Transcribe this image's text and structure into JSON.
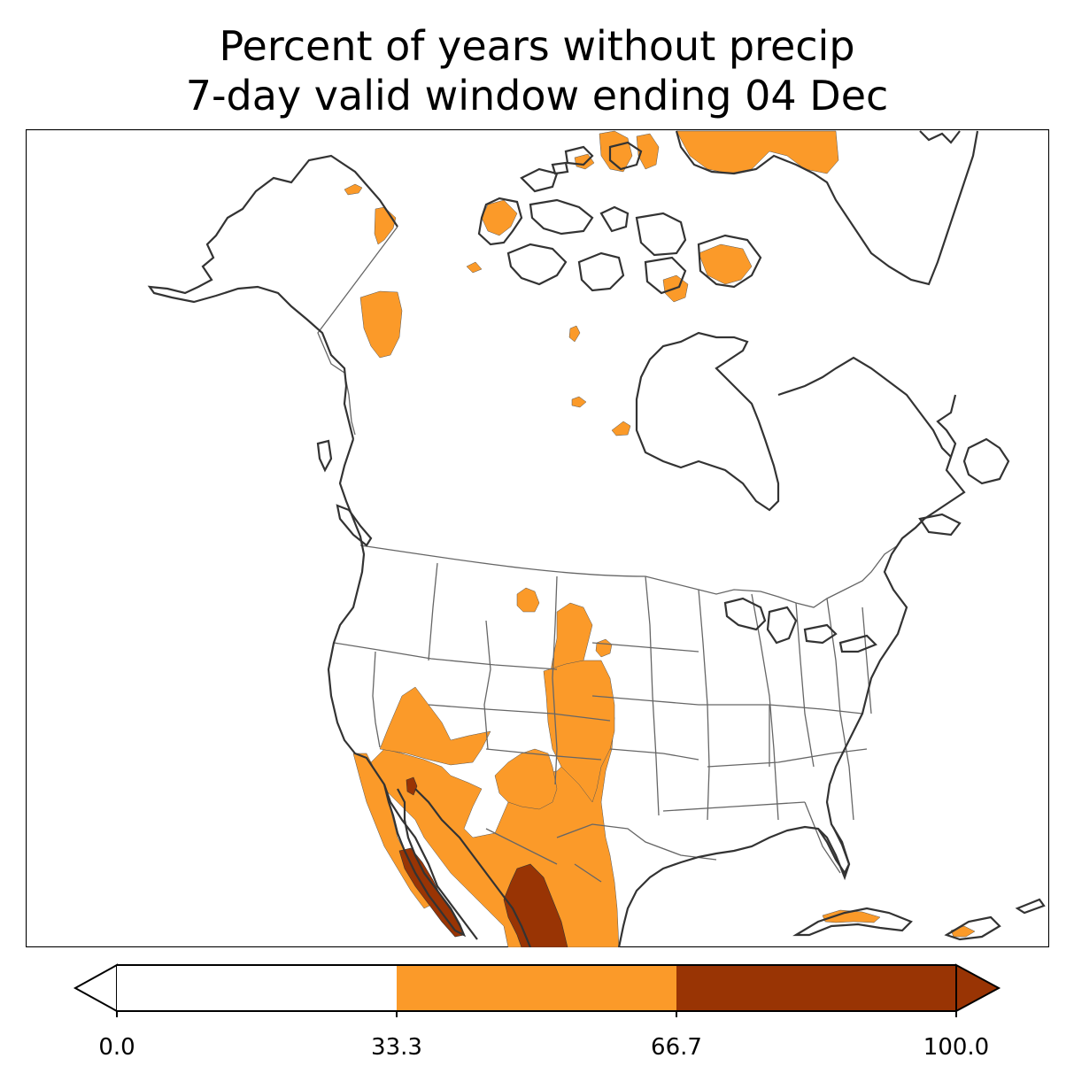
{
  "title": {
    "line1": "Percent of years without precip",
    "line2": "7-day valid window ending 04 Dec"
  },
  "colorbar": {
    "ticks": [
      "0.0",
      "33.3",
      "66.7",
      "100.0"
    ],
    "bins": [
      {
        "range": [
          0.0,
          33.3
        ],
        "color": "#ffffff"
      },
      {
        "range": [
          33.3,
          66.7
        ],
        "color": "#fb9a29"
      },
      {
        "range": [
          66.7,
          100.0
        ],
        "color": "#993404"
      }
    ],
    "extend": "both"
  },
  "map": {
    "region": "North America",
    "coastline_color": "#333333",
    "border_color": "#666666"
  }
}
